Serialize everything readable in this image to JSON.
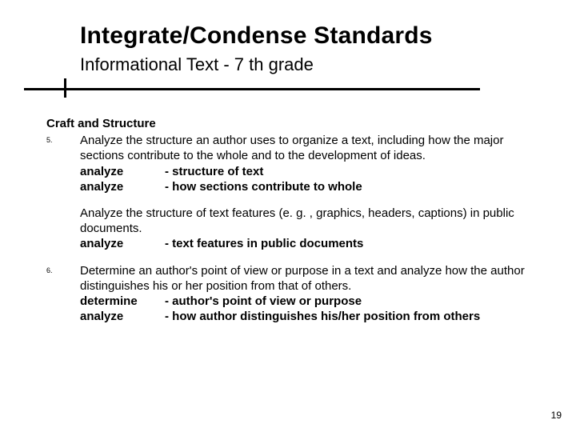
{
  "title": "Integrate/Condense Standards",
  "subtitle": "Informational Text - 7 th grade",
  "section_heading": "Craft and Structure",
  "items": [
    {
      "num": "5.",
      "para": "Analyze the structure an author uses to organize a text, including how the major sections contribute to the whole and to the development of ideas.",
      "rows": [
        {
          "verb": "analyze",
          "desc": "- structure of text"
        },
        {
          "verb": "analyze",
          "desc": "- how sections contribute to whole"
        }
      ]
    },
    {
      "num": "",
      "para": "Analyze the structure of text features (e. g. , graphics, headers, captions) in public documents.",
      "rows": [
        {
          "verb": "analyze",
          "desc": "- text features in public documents"
        }
      ]
    },
    {
      "num": "6.",
      "para": "Determine an author's point of view or purpose in a text and analyze how the author distinguishes his or her position from that of others.",
      "rows": [
        {
          "verb": "determine",
          "desc": "- author's point of view or purpose"
        },
        {
          "verb": "analyze",
          "desc": "- how author distinguishes his/her position from others"
        }
      ]
    }
  ],
  "page_number": "19",
  "colors": {
    "background": "#ffffff",
    "text": "#000000",
    "rule": "#000000"
  },
  "fonts": {
    "title_size": 30,
    "subtitle_size": 22,
    "body_size": 15
  }
}
